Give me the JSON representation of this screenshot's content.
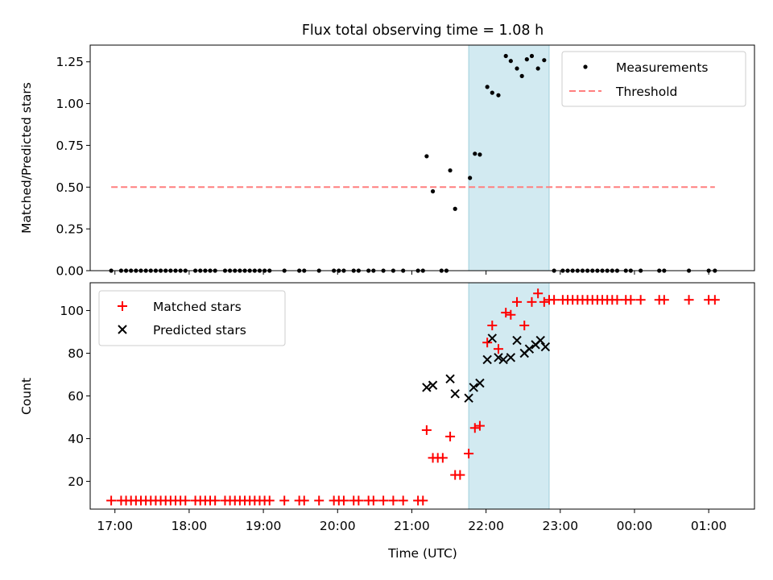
{
  "chart_data": [
    {
      "type": "scatter",
      "title": "Flux total observing time = 1.08 h",
      "xlabel": "",
      "ylabel": "Matched/Predicted stars",
      "xlim": [
        "16:40",
        "25:37"
      ],
      "ylim": [
        0,
        1.35
      ],
      "ytick_labels": [
        "0.00",
        "0.25",
        "0.50",
        "0.75",
        "1.00",
        "1.25"
      ],
      "shaded_region": {
        "x_start": "21:46",
        "x_end": "22:51",
        "color": "#add8e6"
      },
      "legend": {
        "position": "top-right",
        "entries": [
          "Measurements",
          "Threshold"
        ]
      },
      "series": [
        {
          "name": "Measurements",
          "marker": "dot",
          "color": "#000000",
          "points": [
            [
              "16:57",
              0
            ],
            [
              "17:05",
              0
            ],
            [
              "17:09",
              0
            ],
            [
              "17:13",
              0
            ],
            [
              "17:17",
              0
            ],
            [
              "17:21",
              0
            ],
            [
              "17:25",
              0
            ],
            [
              "17:29",
              0
            ],
            [
              "17:33",
              0
            ],
            [
              "17:37",
              0
            ],
            [
              "17:41",
              0
            ],
            [
              "17:45",
              0
            ],
            [
              "17:49",
              0
            ],
            [
              "17:53",
              0
            ],
            [
              "17:57",
              0
            ],
            [
              "18:05",
              0
            ],
            [
              "18:09",
              0
            ],
            [
              "18:13",
              0
            ],
            [
              "18:17",
              0
            ],
            [
              "18:21",
              0
            ],
            [
              "18:29",
              0
            ],
            [
              "18:33",
              0
            ],
            [
              "18:37",
              0
            ],
            [
              "18:41",
              0
            ],
            [
              "18:45",
              0
            ],
            [
              "18:49",
              0
            ],
            [
              "18:53",
              0
            ],
            [
              "18:57",
              0
            ],
            [
              "19:01",
              0
            ],
            [
              "19:05",
              0
            ],
            [
              "19:17",
              0
            ],
            [
              "19:29",
              0
            ],
            [
              "19:33",
              0
            ],
            [
              "19:45",
              0
            ],
            [
              "19:57",
              0
            ],
            [
              "20:01",
              0
            ],
            [
              "20:05",
              0
            ],
            [
              "20:13",
              0
            ],
            [
              "20:17",
              0
            ],
            [
              "20:25",
              0
            ],
            [
              "20:29",
              0
            ],
            [
              "20:37",
              0
            ],
            [
              "20:45",
              0
            ],
            [
              "20:53",
              0
            ],
            [
              "21:05",
              0
            ],
            [
              "21:09",
              0
            ],
            [
              "21:24",
              0
            ],
            [
              "21:28",
              0
            ],
            [
              "21:12",
              0.685
            ],
            [
              "21:17",
              0.475
            ],
            [
              "21:31",
              0.6
            ],
            [
              "21:35",
              0.37
            ],
            [
              "21:47",
              0.555
            ],
            [
              "21:51",
              0.7
            ],
            [
              "21:55",
              0.695
            ],
            [
              "22:01",
              1.1
            ],
            [
              "22:05",
              1.065
            ],
            [
              "22:10",
              1.05
            ],
            [
              "22:16",
              1.285
            ],
            [
              "22:20",
              1.255
            ],
            [
              "22:25",
              1.21
            ],
            [
              "22:29",
              1.165
            ],
            [
              "22:33",
              1.265
            ],
            [
              "22:37",
              1.285
            ],
            [
              "22:42",
              1.21
            ],
            [
              "22:47",
              1.26
            ],
            [
              "22:55",
              0
            ],
            [
              "23:02",
              0
            ],
            [
              "23:06",
              0
            ],
            [
              "23:10",
              0
            ],
            [
              "23:14",
              0
            ],
            [
              "23:18",
              0
            ],
            [
              "23:22",
              0
            ],
            [
              "23:26",
              0
            ],
            [
              "23:30",
              0
            ],
            [
              "23:34",
              0
            ],
            [
              "23:38",
              0
            ],
            [
              "23:42",
              0
            ],
            [
              "23:46",
              0
            ],
            [
              "23:53",
              0
            ],
            [
              "23:57",
              0
            ],
            [
              "24:05",
              0
            ],
            [
              "24:20",
              0
            ],
            [
              "24:24",
              0
            ],
            [
              "24:44",
              0
            ],
            [
              "25:00",
              0
            ],
            [
              "25:05",
              0
            ]
          ]
        },
        {
          "name": "Threshold",
          "marker": "dashed-line",
          "color": "#ff7f7f",
          "points": [
            [
              "16:57",
              0.5
            ],
            [
              "25:05",
              0.5
            ]
          ]
        }
      ]
    },
    {
      "type": "scatter",
      "title": "",
      "xlabel": "Time (UTC)",
      "ylabel": "Count",
      "xlim": [
        "16:40",
        "25:37"
      ],
      "ylim": [
        7,
        113
      ],
      "ytick_labels": [
        "20",
        "40",
        "60",
        "80",
        "100"
      ],
      "xtick_labels": [
        "17:00",
        "18:00",
        "19:00",
        "20:00",
        "21:00",
        "22:00",
        "23:00",
        "00:00",
        "01:00"
      ],
      "shaded_region": {
        "x_start": "21:46",
        "x_end": "22:51",
        "color": "#add8e6"
      },
      "legend": {
        "position": "top-left",
        "entries": [
          "Matched stars",
          "Predicted stars"
        ]
      },
      "series": [
        {
          "name": "Matched stars",
          "marker": "plus",
          "color": "#ff0000",
          "points": [
            [
              "16:57",
              11
            ],
            [
              "17:05",
              11
            ],
            [
              "17:09",
              11
            ],
            [
              "17:13",
              11
            ],
            [
              "17:17",
              11
            ],
            [
              "17:21",
              11
            ],
            [
              "17:25",
              11
            ],
            [
              "17:29",
              11
            ],
            [
              "17:33",
              11
            ],
            [
              "17:37",
              11
            ],
            [
              "17:41",
              11
            ],
            [
              "17:45",
              11
            ],
            [
              "17:49",
              11
            ],
            [
              "17:53",
              11
            ],
            [
              "17:57",
              11
            ],
            [
              "18:05",
              11
            ],
            [
              "18:09",
              11
            ],
            [
              "18:13",
              11
            ],
            [
              "18:17",
              11
            ],
            [
              "18:21",
              11
            ],
            [
              "18:29",
              11
            ],
            [
              "18:33",
              11
            ],
            [
              "18:37",
              11
            ],
            [
              "18:41",
              11
            ],
            [
              "18:45",
              11
            ],
            [
              "18:49",
              11
            ],
            [
              "18:53",
              11
            ],
            [
              "18:57",
              11
            ],
            [
              "19:01",
              11
            ],
            [
              "19:05",
              11
            ],
            [
              "19:17",
              11
            ],
            [
              "19:29",
              11
            ],
            [
              "19:33",
              11
            ],
            [
              "19:45",
              11
            ],
            [
              "19:57",
              11
            ],
            [
              "20:01",
              11
            ],
            [
              "20:05",
              11
            ],
            [
              "20:13",
              11
            ],
            [
              "20:17",
              11
            ],
            [
              "20:25",
              11
            ],
            [
              "20:29",
              11
            ],
            [
              "20:37",
              11
            ],
            [
              "20:45",
              11
            ],
            [
              "20:53",
              11
            ],
            [
              "21:05",
              11
            ],
            [
              "21:09",
              11
            ],
            [
              "21:12",
              44
            ],
            [
              "21:17",
              31
            ],
            [
              "21:21",
              31
            ],
            [
              "21:25",
              31
            ],
            [
              "21:31",
              41
            ],
            [
              "21:35",
              23
            ],
            [
              "21:39",
              23
            ],
            [
              "21:46",
              33
            ],
            [
              "21:51",
              45
            ],
            [
              "21:55",
              46
            ],
            [
              "22:01",
              85
            ],
            [
              "22:05",
              93
            ],
            [
              "22:10",
              82
            ],
            [
              "22:16",
              99
            ],
            [
              "22:20",
              98
            ],
            [
              "22:25",
              104
            ],
            [
              "22:31",
              93
            ],
            [
              "22:37",
              104
            ],
            [
              "22:42",
              108
            ],
            [
              "22:47",
              104
            ],
            [
              "22:51",
              105
            ],
            [
              "22:55",
              105
            ],
            [
              "23:02",
              105
            ],
            [
              "23:06",
              105
            ],
            [
              "23:10",
              105
            ],
            [
              "23:14",
              105
            ],
            [
              "23:18",
              105
            ],
            [
              "23:22",
              105
            ],
            [
              "23:26",
              105
            ],
            [
              "23:30",
              105
            ],
            [
              "23:34",
              105
            ],
            [
              "23:38",
              105
            ],
            [
              "23:42",
              105
            ],
            [
              "23:46",
              105
            ],
            [
              "23:53",
              105
            ],
            [
              "23:57",
              105
            ],
            [
              "24:05",
              105
            ],
            [
              "24:20",
              105
            ],
            [
              "24:24",
              105
            ],
            [
              "24:44",
              105
            ],
            [
              "25:00",
              105
            ],
            [
              "25:05",
              105
            ]
          ]
        },
        {
          "name": "Predicted stars",
          "marker": "x",
          "color": "#000000",
          "points": [
            [
              "21:12",
              64
            ],
            [
              "21:17",
              65
            ],
            [
              "21:31",
              68
            ],
            [
              "21:35",
              61
            ],
            [
              "21:46",
              59
            ],
            [
              "21:50",
              64
            ],
            [
              "21:55",
              66
            ],
            [
              "22:01",
              77
            ],
            [
              "22:05",
              87
            ],
            [
              "22:10",
              78
            ],
            [
              "22:14",
              77
            ],
            [
              "22:20",
              78
            ],
            [
              "22:25",
              86
            ],
            [
              "22:31",
              80
            ],
            [
              "22:35",
              82
            ],
            [
              "22:40",
              84
            ],
            [
              "22:44",
              86
            ],
            [
              "22:48",
              83
            ]
          ]
        }
      ]
    }
  ]
}
